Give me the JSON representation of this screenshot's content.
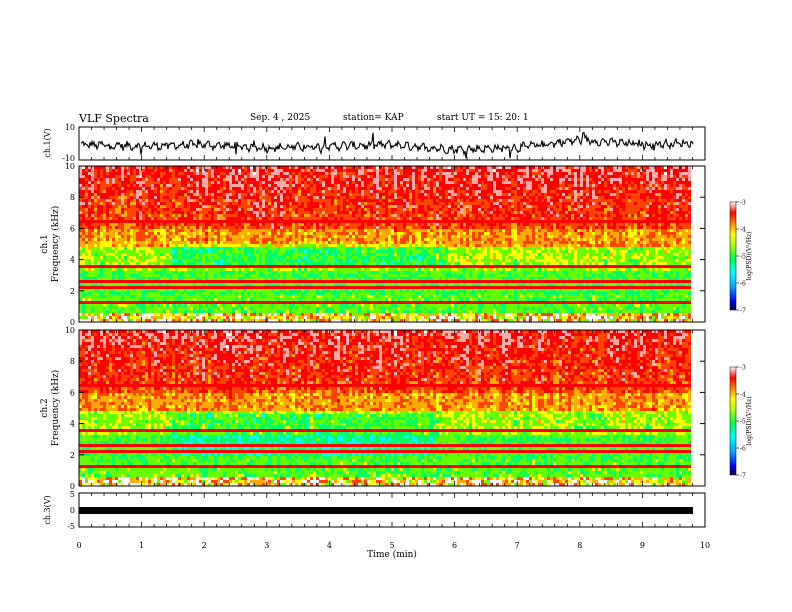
{
  "header": {
    "title": "VLF Spectra",
    "date": "Sep. 4 , 2025",
    "station": "station= KAP",
    "start": "start UT =  15: 20: 1"
  },
  "colors": {
    "scale": [
      "#000060",
      "#0000ff",
      "#00aaff",
      "#00ffff",
      "#00ff66",
      "#66ff00",
      "#ffff00",
      "#ffaa00",
      "#ff4400",
      "#ff0000",
      "#ffaaaa",
      "#ffffff"
    ],
    "trace": "#000000"
  },
  "chart_data": [
    {
      "type": "line",
      "ylabel": "ch.1(V)",
      "ylim": [
        -10,
        10
      ],
      "yticks": [
        "10",
        "-10"
      ],
      "xlim": [
        0,
        10
      ],
      "description_values": {
        "x_min": [
          0,
          1,
          2,
          3,
          4,
          5,
          6,
          7,
          8,
          9,
          9.8
        ],
        "y_level": [
          -1,
          -2,
          -1,
          -3,
          -2,
          -1,
          -4,
          -3,
          2,
          -1,
          0
        ]
      }
    },
    {
      "type": "heatmap",
      "ylabel": "ch.1\nFrequency (kHz)",
      "ylabel_lines": [
        "ch.1",
        "Frequency (kHz)"
      ],
      "ylim": [
        0,
        10
      ],
      "yticks": [
        "0",
        "2",
        "4",
        "6",
        "8",
        "10"
      ],
      "xlim": [
        0,
        10
      ],
      "colorbar": {
        "label": "log(PSD)(V²/Hz)",
        "ticks": [
          "-3",
          "-4",
          "-5",
          "-6",
          "-7"
        ],
        "range": [
          -7,
          -3
        ]
      }
    },
    {
      "type": "heatmap",
      "ylabel": "ch.2\nFrequency (kHz)",
      "ylabel_lines": [
        "ch.2",
        "Frequency (kHz)"
      ],
      "ylim": [
        0,
        10
      ],
      "yticks": [
        "0",
        "2",
        "4",
        "6",
        "8",
        "10"
      ],
      "xlim": [
        0,
        10
      ],
      "colorbar": {
        "label": "log(PSD)(V²/Hz)",
        "ticks": [
          "-3",
          "-4",
          "-5",
          "-6",
          "-7"
        ],
        "range": [
          -7,
          -3
        ]
      }
    },
    {
      "type": "line",
      "ylabel": "ch.3(V)",
      "ylim": [
        -5,
        5
      ],
      "yticks": [
        "5",
        "0",
        "-5"
      ],
      "xlim": [
        0,
        10
      ],
      "constant_value": 0
    }
  ],
  "xaxis": {
    "label": "Time (min)",
    "ticks": [
      "0",
      "1",
      "2",
      "3",
      "4",
      "5",
      "6",
      "7",
      "8",
      "9",
      "10"
    ]
  }
}
